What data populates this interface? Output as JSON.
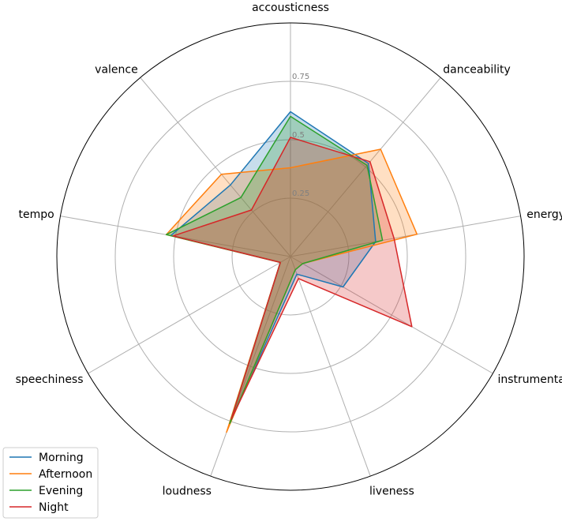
{
  "chart_data": {
    "type": "radar",
    "title": "",
    "axes": [
      "accousticness",
      "danceability",
      "energy",
      "instrumentalness",
      "liveness",
      "loudness",
      "speechiness",
      "tempo",
      "valence"
    ],
    "rlim": [
      0,
      1
    ],
    "ticks": [
      {
        "value": 0.25,
        "label": "0.25"
      },
      {
        "value": 0.5,
        "label": "0.5"
      },
      {
        "value": 0.75,
        "label": "0.75"
      }
    ],
    "grid": true,
    "legend_position": "bottom-left",
    "series": [
      {
        "name": "Morning",
        "color": "#1f77b4",
        "values": [
          0.62,
          0.52,
          0.37,
          0.26,
          0.08,
          0.76,
          0.05,
          0.52,
          0.4
        ]
      },
      {
        "name": "Afternoon",
        "color": "#ff7f0e",
        "values": [
          0.38,
          0.6,
          0.55,
          0.06,
          0.06,
          0.8,
          0.05,
          0.54,
          0.46
        ]
      },
      {
        "name": "Evening",
        "color": "#2ca02c",
        "values": [
          0.6,
          0.51,
          0.4,
          0.06,
          0.06,
          0.76,
          0.05,
          0.54,
          0.33
        ]
      },
      {
        "name": "Night",
        "color": "#d62728",
        "values": [
          0.51,
          0.53,
          0.45,
          0.6,
          0.1,
          0.74,
          0.05,
          0.51,
          0.26
        ]
      }
    ]
  }
}
